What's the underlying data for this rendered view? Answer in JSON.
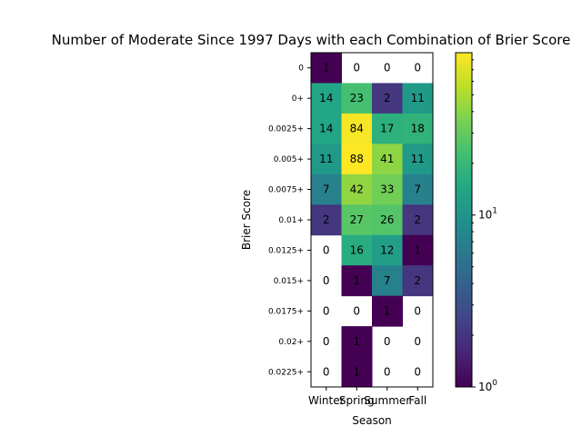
{
  "chart_data": {
    "type": "heatmap",
    "title": "Number of Moderate Since 1997 Days with each Combination of Brier Score",
    "xlabel": "Season",
    "ylabel": "Brier Score",
    "x_categories": [
      "Winter",
      "Spring",
      "Summer",
      "Fall"
    ],
    "y_categories": [
      "0",
      "0+",
      "0.0025+",
      "0.005+",
      "0.0075+",
      "0.01+",
      "0.0125+",
      "0.015+",
      "0.0175+",
      "0.02+",
      "0.0225+"
    ],
    "values": [
      [
        1,
        0,
        0,
        0
      ],
      [
        14,
        23,
        2,
        11
      ],
      [
        14,
        84,
        17,
        18
      ],
      [
        11,
        88,
        41,
        11
      ],
      [
        7,
        42,
        33,
        7
      ],
      [
        2,
        27,
        26,
        2
      ],
      [
        0,
        16,
        12,
        1
      ],
      [
        0,
        1,
        7,
        2
      ],
      [
        0,
        0,
        1,
        0
      ],
      [
        0,
        1,
        0,
        0
      ],
      [
        0,
        1,
        0,
        0
      ]
    ],
    "color_scale": "log",
    "colormap": "viridis",
    "colorbar": {
      "min": 1,
      "max": 88,
      "tick_labels": [
        "10^0",
        "10^1"
      ],
      "position": "right"
    },
    "zero_cells": "blank",
    "grid": false
  }
}
